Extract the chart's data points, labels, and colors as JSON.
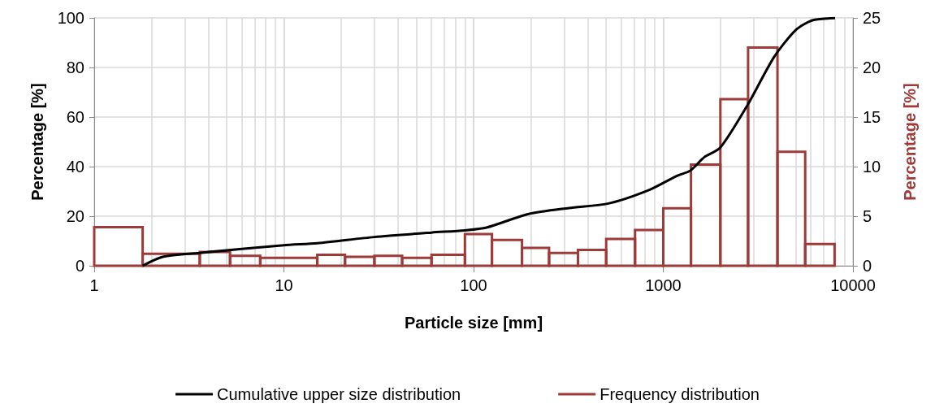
{
  "chart_data": {
    "type": "line",
    "xlabel": "Particle size [mm]",
    "ylabel": "Percentage [%]",
    "y2label": "Percentage [%]",
    "log": "x",
    "grid": true,
    "legend": "bottom",
    "marker": "none",
    "line_style": "solid",
    "xlim": [
      1,
      10000
    ],
    "xticks": [
      1,
      10,
      100,
      1000,
      10000
    ],
    "ylim": [
      0,
      100
    ],
    "yticks": [
      0,
      20,
      40,
      60,
      80,
      100
    ],
    "y2lim": [
      0,
      25
    ],
    "y2ticks": [
      0,
      5,
      10,
      15,
      20,
      25
    ],
    "series": [
      {
        "name": "Cumulative upper size distribution",
        "color": "#000000",
        "x": [
          1.8,
          2.3,
          3.6,
          10,
          15,
          30,
          60,
          90,
          117,
          195,
          318,
          519,
          850,
          1175,
          1390,
          1645,
          1995,
          2770,
          3845,
          5010,
          6110,
          8050
        ],
        "values": [
          0,
          3.6,
          5.2,
          8.3,
          9.1,
          11.6,
          13.4,
          14.3,
          15.4,
          20.9,
          23.3,
          25.2,
          30.7,
          36.2,
          38.4,
          43.8,
          47.6,
          64.6,
          84.3,
          95.2,
          99,
          99.9
        ]
      },
      {
        "name": "Frequency distribution",
        "color": "#9e3b38",
        "type": "histogram",
        "axis": "y2",
        "bins": [
          1,
          1.8,
          3.6,
          5.2,
          7.5,
          15,
          21,
          30,
          42,
          60,
          90,
          125,
          180,
          250,
          355,
          500,
          710,
          1000,
          1400,
          2000,
          2800,
          4000,
          5600,
          8000
        ],
        "values": [
          3.9,
          1.2,
          1.4,
          1,
          0.8,
          1.1,
          0.9,
          1,
          0.8,
          1.1,
          3.2,
          2.6,
          1.8,
          1.3,
          1.6,
          2.7,
          3.6,
          5.8,
          10.2,
          16.8,
          22,
          11.5,
          2.2
        ]
      }
    ]
  }
}
